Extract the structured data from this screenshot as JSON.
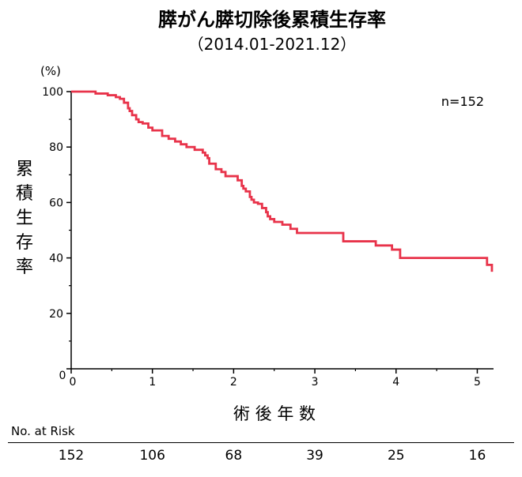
{
  "chart_data": {
    "type": "line",
    "title": "膵がん膵切除後累積生存率",
    "subtitle": "（2014.01-2021.12）",
    "ylabel": "累積生存率",
    "y_unit": "(%)",
    "xlabel": "術 後 年 数",
    "annotation": "n=152",
    "xlim": [
      0,
      5.2
    ],
    "ylim": [
      0,
      100
    ],
    "x_ticks": [
      "0",
      "1",
      "2",
      "3",
      "4",
      "5"
    ],
    "y_ticks": [
      "0",
      "20",
      "40",
      "60",
      "80",
      "100"
    ],
    "origin_label": "0",
    "grid": false,
    "line_color": "#e8334a",
    "series": [
      {
        "x": [
          0,
          0.3,
          0.45,
          0.55,
          0.6,
          0.65,
          0.7,
          0.72,
          0.75,
          0.8,
          0.83,
          0.88,
          0.95,
          1.0,
          1.12,
          1.2,
          1.28,
          1.35,
          1.42,
          1.52,
          1.62,
          1.65,
          1.68,
          1.7,
          1.72,
          1.78,
          1.85,
          1.9,
          2.05,
          2.1,
          2.12,
          2.15,
          2.2,
          2.22,
          2.25,
          2.3,
          2.35,
          2.4,
          2.42,
          2.45,
          2.5,
          2.6,
          2.7,
          2.78,
          3.35,
          3.55,
          3.75,
          3.85,
          3.95,
          4.05,
          4.95,
          5.12,
          5.18
        ],
        "y": [
          100,
          99.3,
          98.7,
          98,
          97.4,
          96,
          94,
          93,
          91.5,
          90,
          89,
          88.5,
          87,
          86,
          84,
          83,
          82,
          81,
          80,
          79,
          78,
          77,
          76,
          74,
          74,
          72,
          71,
          69.5,
          68,
          66,
          65,
          64,
          62,
          61,
          60,
          59.5,
          58,
          56.5,
          55,
          54,
          53,
          52,
          50.5,
          49,
          46,
          46,
          44.5,
          44.5,
          43,
          40,
          40,
          37.5,
          35
        ]
      }
    ],
    "risk_table": {
      "label": "No. at Risk",
      "values": [
        "152",
        "106",
        "68",
        "39",
        "25",
        "16"
      ]
    }
  }
}
